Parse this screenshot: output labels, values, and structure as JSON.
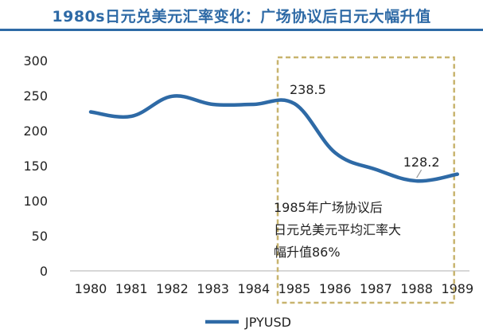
{
  "colors": {
    "title": "#2e6aa6",
    "series": "#2e6aa6",
    "highlight_box": "#c8b46e",
    "axis": "#bfbfbf",
    "text": "#222222"
  },
  "chart_data": {
    "type": "line",
    "title": "1980s日元兑美元汇率变化：广场协议后日元大幅升值",
    "categories": [
      "1980",
      "1981",
      "1982",
      "1983",
      "1984",
      "1985",
      "1986",
      "1987",
      "1988",
      "1989"
    ],
    "y_ticks": [
      "0",
      "50",
      "100",
      "150",
      "200",
      "250",
      "300"
    ],
    "ylim": [
      0,
      300
    ],
    "grid": false,
    "legend_position": "bottom",
    "series": [
      {
        "name": "JPYUSD",
        "values": [
          226.7,
          220.5,
          249.1,
          237.5,
          237.5,
          238.5,
          168.5,
          144.6,
          128.2,
          137.9
        ]
      }
    ],
    "data_labels": [
      {
        "category": "1985",
        "value": 238.5,
        "text": "238.5"
      },
      {
        "category": "1988",
        "value": 128.2,
        "text": "128.2"
      }
    ],
    "highlight_range": [
      "1985",
      "1989"
    ],
    "annotation": {
      "lines": [
        "1985年广场协议后",
        "日元兑美元平均汇率大",
        "幅升值86%"
      ]
    }
  }
}
